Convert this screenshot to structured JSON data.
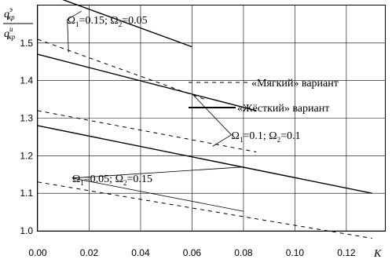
{
  "chart_data": {
    "type": "line",
    "ylabel_top": {
      "base": "q",
      "sub": "кр",
      "sup": "э"
    },
    "ylabel_bottom": {
      "base": "q",
      "sub": "кр",
      "sup": "и"
    },
    "xlabel": "K",
    "xlim": [
      0.0,
      0.135
    ],
    "ylim": [
      1.0,
      1.6
    ],
    "xticks": [
      "0.00",
      "0.02",
      "0.04",
      "0.06",
      "0.08",
      "0.10",
      "0.12"
    ],
    "yticks": [
      "1.0",
      "1.1",
      "1.2",
      "1.3",
      "1.4",
      "1.5"
    ],
    "grid": true,
    "legend_position": "right",
    "legend": [
      {
        "label": "«Мягкий» вариант",
        "style": "dashed"
      },
      {
        "label": "«Жёсткий» вариант",
        "style": "solid"
      }
    ],
    "series": [
      {
        "group": "Ω1=0.15; Ω2=0.05",
        "style": "solid",
        "x": [
          0.0,
          0.06
        ],
        "y": [
          1.64,
          1.49
        ]
      },
      {
        "group": "Ω1=0.15; Ω2=0.05",
        "style": "dashed",
        "x": [
          0.0,
          0.065
        ],
        "y": [
          1.51,
          1.35
        ]
      },
      {
        "group": "Ω1=0.1; Ω2=0.1",
        "style": "solid",
        "x": [
          0.0,
          0.085
        ],
        "y": [
          1.47,
          1.32
        ]
      },
      {
        "group": "Ω1=0.1; Ω2=0.1",
        "style": "dashed",
        "x": [
          0.0,
          0.085
        ],
        "y": [
          1.32,
          1.21
        ]
      },
      {
        "group": "Ω1=0.05; Ω2=0.15",
        "style": "solid",
        "x": [
          0.0,
          0.13
        ],
        "y": [
          1.28,
          1.1
        ]
      },
      {
        "group": "Ω1=0.05; Ω2=0.15",
        "style": "dashed",
        "x": [
          0.0,
          0.13
        ],
        "y": [
          1.13,
          0.98
        ]
      }
    ],
    "annotations": [
      {
        "id": "a1",
        "parts": [
          [
            "Ω",
            "1",
            "=0.15; "
          ],
          [
            "Ω",
            "2",
            "=0.05"
          ]
        ],
        "x": 0.0115,
        "y": 1.552,
        "pointers": [
          {
            "x": 0.017,
            "y": 1.585
          },
          {
            "x": 0.012,
            "y": 1.475
          }
        ]
      },
      {
        "id": "a2",
        "parts": [
          [
            "Ω",
            "1",
            "=0.1; "
          ],
          [
            "Ω",
            "2",
            "=0.1"
          ]
        ],
        "x": 0.0753,
        "y": 1.245,
        "pointers": [
          {
            "x": 0.06,
            "y": 1.365
          },
          {
            "x": 0.068,
            "y": 1.225
          }
        ]
      },
      {
        "id": "a3",
        "parts": [
          [
            "Ω",
            "1",
            "=0.05; "
          ],
          [
            "Ω",
            "2",
            "=0.15"
          ]
        ],
        "x": 0.0134,
        "y": 1.13,
        "pointers": [
          {
            "x": 0.08,
            "y": 1.17
          },
          {
            "x": 0.08,
            "y": 1.052
          }
        ]
      }
    ]
  }
}
